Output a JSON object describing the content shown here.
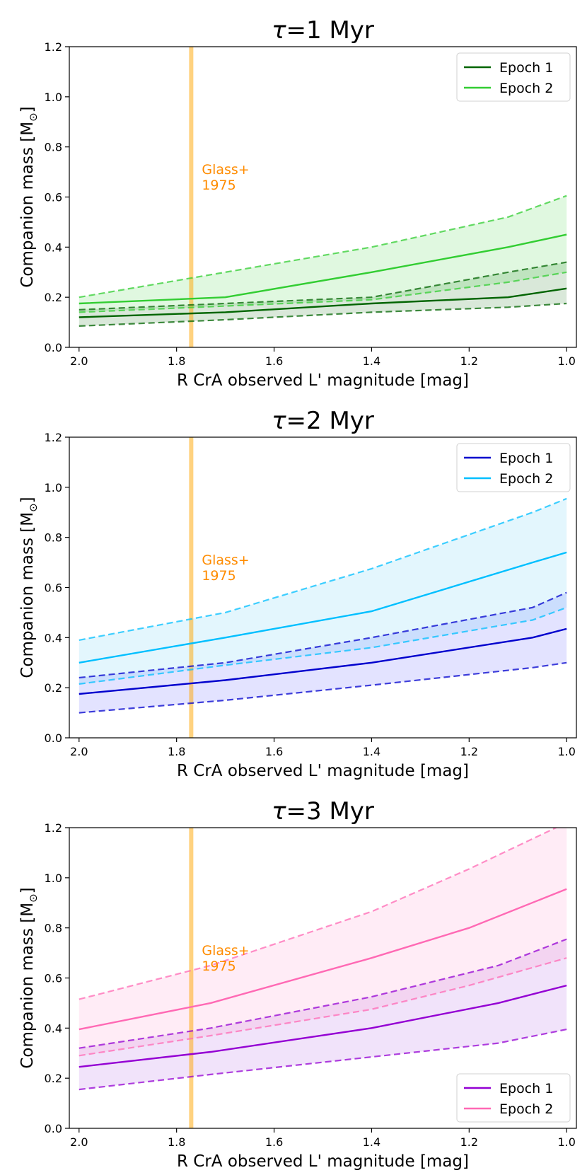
{
  "chart_data": [
    {
      "type": "line",
      "title": "τ=1 Myr",
      "title_tau": "τ",
      "title_rest": "=1 Myr",
      "xlabel": "R CrA observed L' magnitude [mag]",
      "ylabel": "Companion mass [M",
      "ylabel_sub": "⊙",
      "ylabel_end": "]",
      "xlim": [
        2.02,
        0.98
      ],
      "ylim": [
        0.0,
        1.2
      ],
      "x_ticks": [
        "2.0",
        "1.8",
        "1.6",
        "1.4",
        "1.2",
        "1.0"
      ],
      "y_ticks": [
        "0.0",
        "0.2",
        "0.4",
        "0.6",
        "0.8",
        "1.0",
        "1.2"
      ],
      "legend_position": "upper right",
      "annotation": {
        "lines": [
          "Glass+",
          "1975"
        ],
        "x": 1.77,
        "color": "#ffa500"
      },
      "series": [
        {
          "name": "Epoch 1",
          "color": "#006400",
          "fill": "#006400",
          "x": [
            2.0,
            1.7,
            1.4,
            1.12,
            1.0
          ],
          "y": [
            0.12,
            0.14,
            0.175,
            0.2,
            0.235
          ],
          "y_low": [
            0.085,
            0.11,
            0.14,
            0.16,
            0.175
          ],
          "y_high": [
            0.15,
            0.175,
            0.2,
            0.3,
            0.34
          ]
        },
        {
          "name": "Epoch 2",
          "color": "#32cd32",
          "fill": "#32cd32",
          "x": [
            2.0,
            1.7,
            1.4,
            1.12,
            1.0
          ],
          "y": [
            0.175,
            0.2,
            0.3,
            0.4,
            0.45
          ],
          "y_low": [
            0.14,
            0.165,
            0.19,
            0.26,
            0.3
          ],
          "y_high": [
            0.2,
            0.3,
            0.4,
            0.52,
            0.605
          ]
        }
      ]
    },
    {
      "type": "line",
      "title": "τ=2 Myr",
      "title_tau": "τ",
      "title_rest": "=2 Myr",
      "xlabel": "R CrA observed L' magnitude [mag]",
      "ylabel": "Companion mass [M",
      "ylabel_sub": "⊙",
      "ylabel_end": "]",
      "xlim": [
        2.02,
        0.98
      ],
      "ylim": [
        0.0,
        1.2
      ],
      "x_ticks": [
        "2.0",
        "1.8",
        "1.6",
        "1.4",
        "1.2",
        "1.0"
      ],
      "y_ticks": [
        "0.0",
        "0.2",
        "0.4",
        "0.6",
        "0.8",
        "1.0",
        "1.2"
      ],
      "legend_position": "upper right",
      "annotation": {
        "lines": [
          "Glass+",
          "1975"
        ],
        "x": 1.77,
        "color": "#ffa500"
      },
      "series": [
        {
          "name": "Epoch 1",
          "color": "#0000cd",
          "fill": "#4040ff",
          "x": [
            2.0,
            1.7,
            1.4,
            1.07,
            1.0
          ],
          "y": [
            0.175,
            0.23,
            0.3,
            0.4,
            0.435
          ],
          "y_low": [
            0.1,
            0.15,
            0.21,
            0.28,
            0.3
          ],
          "y_high": [
            0.24,
            0.3,
            0.4,
            0.52,
            0.58
          ]
        },
        {
          "name": "Epoch 2",
          "color": "#00bfff",
          "fill": "#40c0f0",
          "x": [
            2.0,
            1.7,
            1.4,
            1.07,
            1.0
          ],
          "y": [
            0.3,
            0.4,
            0.505,
            0.7,
            0.74
          ],
          "y_low": [
            0.215,
            0.29,
            0.36,
            0.47,
            0.52
          ],
          "y_high": [
            0.39,
            0.5,
            0.675,
            0.9,
            0.955
          ]
        }
      ]
    },
    {
      "type": "line",
      "title": "τ=3 Myr",
      "title_tau": "τ",
      "title_rest": "=3 Myr",
      "xlabel": "R CrA observed L' magnitude [mag]",
      "ylabel": "Companion mass [M",
      "ylabel_sub": "⊙",
      "ylabel_end": "]",
      "xlim": [
        2.02,
        0.98
      ],
      "ylim": [
        0.0,
        1.2
      ],
      "x_ticks": [
        "2.0",
        "1.8",
        "1.6",
        "1.4",
        "1.2",
        "1.0"
      ],
      "y_ticks": [
        "0.0",
        "0.2",
        "0.4",
        "0.6",
        "0.8",
        "1.0",
        "1.2"
      ],
      "legend_position": "lower right",
      "annotation": {
        "lines": [
          "Glass+",
          "1975"
        ],
        "x": 1.77,
        "color": "#ffa500"
      },
      "series": [
        {
          "name": "Epoch 1",
          "color": "#9400d3",
          "fill": "#a040e0",
          "x": [
            2.0,
            1.73,
            1.4,
            1.14,
            1.0
          ],
          "y": [
            0.245,
            0.305,
            0.4,
            0.5,
            0.57
          ],
          "y_low": [
            0.155,
            0.215,
            0.285,
            0.34,
            0.395
          ],
          "y_high": [
            0.32,
            0.4,
            0.525,
            0.65,
            0.755
          ]
        },
        {
          "name": "Epoch 2",
          "color": "#ff69b4",
          "fill": "#ff80c0",
          "x": [
            2.0,
            1.73,
            1.4,
            1.2,
            1.0
          ],
          "y": [
            0.395,
            0.5,
            0.68,
            0.8,
            0.955
          ],
          "y_low": [
            0.29,
            0.37,
            0.475,
            0.57,
            0.68
          ],
          "y_high": [
            0.515,
            0.65,
            0.865,
            1.035,
            1.22
          ]
        }
      ]
    }
  ]
}
